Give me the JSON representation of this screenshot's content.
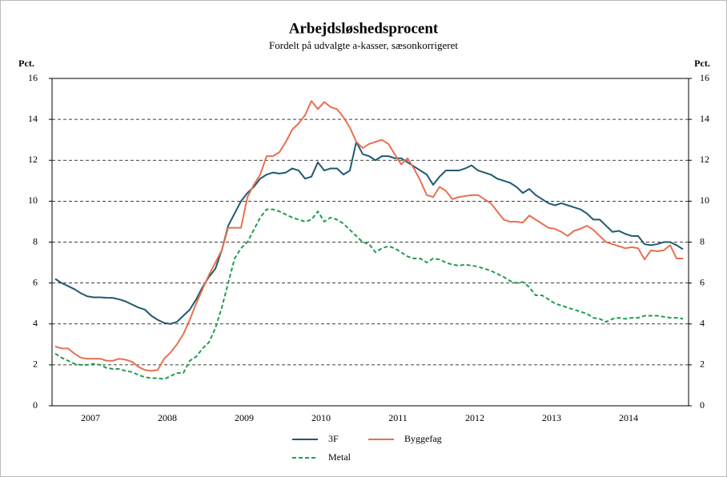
{
  "chart_data": {
    "type": "line",
    "title": "Arbejdsløshedsprocent",
    "subtitle": "Fordelt på udvalgte a-kasser, sæsonkorrigeret",
    "ylabel": "Pct.",
    "y2label": "Pct.",
    "categories": [
      null,
      null,
      null,
      null,
      null,
      null,
      "2007",
      null,
      null,
      null,
      null,
      null,
      null,
      null,
      null,
      null,
      null,
      null,
      "2008",
      null,
      null,
      null,
      null,
      null,
      null,
      null,
      null,
      null,
      null,
      null,
      "2009",
      null,
      null,
      null,
      null,
      null,
      null,
      null,
      null,
      null,
      null,
      null,
      "2010",
      null,
      null,
      null,
      null,
      null,
      null,
      null,
      null,
      null,
      null,
      null,
      "2011",
      null,
      null,
      null,
      null,
      null,
      null,
      null,
      null,
      null,
      null,
      null,
      "2012",
      null,
      null,
      null,
      null,
      null,
      null,
      null,
      null,
      null,
      null,
      null,
      "2013",
      null,
      null,
      null,
      null,
      null,
      null,
      null,
      null,
      null,
      null,
      null,
      "2014",
      null,
      null,
      null,
      null,
      null,
      null,
      null,
      null
    ],
    "series": [
      {
        "name": "3F",
        "color": "#1f5a70",
        "style": "solid",
        "values": [
          6.2,
          6.0,
          5.85,
          5.7,
          5.5,
          5.35,
          5.3,
          5.3,
          5.28,
          5.27,
          5.2,
          5.1,
          4.95,
          4.8,
          4.7,
          4.4,
          4.2,
          4.05,
          4.0,
          4.1,
          4.4,
          4.7,
          5.2,
          5.8,
          6.3,
          6.7,
          7.6,
          8.8,
          9.4,
          10.0,
          10.4,
          10.7,
          11.1,
          11.3,
          11.4,
          11.35,
          11.4,
          11.6,
          11.5,
          11.1,
          11.2,
          11.9,
          11.5,
          11.6,
          11.6,
          11.3,
          11.5,
          12.9,
          12.3,
          12.2,
          12.0,
          12.2,
          12.2,
          12.1,
          12.1,
          11.9,
          11.7,
          11.5,
          11.3,
          10.8,
          11.2,
          11.5,
          11.5,
          11.5,
          11.6,
          11.75,
          11.5,
          11.4,
          11.3,
          11.1,
          11.0,
          10.9,
          10.7,
          10.4,
          10.6,
          10.3,
          10.1,
          9.9,
          9.8,
          9.9,
          9.8,
          9.7,
          9.6,
          9.4,
          9.1,
          9.1,
          8.8,
          8.5,
          8.55,
          8.4,
          8.3,
          8.3,
          7.9,
          7.85,
          7.9,
          8.0,
          8.0,
          7.85,
          7.65
        ]
      },
      {
        "name": "Byggefag",
        "color": "#e8704f",
        "style": "solid",
        "values": [
          2.9,
          2.8,
          2.8,
          2.55,
          2.35,
          2.3,
          2.3,
          2.3,
          2.2,
          2.2,
          2.3,
          2.25,
          2.15,
          1.9,
          1.75,
          1.7,
          1.75,
          2.3,
          2.6,
          3.0,
          3.5,
          4.2,
          5.0,
          5.7,
          6.4,
          7.0,
          7.6,
          8.7,
          8.7,
          8.7,
          10.2,
          10.8,
          11.3,
          12.2,
          12.2,
          12.4,
          12.9,
          13.5,
          13.8,
          14.2,
          14.9,
          14.5,
          14.85,
          14.6,
          14.5,
          14.1,
          13.6,
          12.9,
          12.6,
          12.8,
          12.9,
          13.0,
          12.8,
          12.3,
          11.8,
          12.1,
          11.6,
          11.0,
          10.3,
          10.2,
          10.7,
          10.5,
          10.1,
          10.2,
          10.25,
          10.3,
          10.3,
          10.1,
          9.9,
          9.5,
          9.1,
          9.0,
          9.0,
          8.95,
          9.3,
          9.1,
          8.9,
          8.7,
          8.65,
          8.5,
          8.3,
          8.55,
          8.65,
          8.8,
          8.6,
          8.3,
          8.0,
          7.9,
          7.8,
          7.7,
          7.75,
          7.7,
          7.15,
          7.6,
          7.55,
          7.6,
          7.85,
          7.2,
          7.2
        ]
      },
      {
        "name": "Metal",
        "color": "#1f9e4e",
        "style": "dashed",
        "values": [
          2.55,
          2.35,
          2.2,
          2.05,
          2.0,
          2.0,
          2.05,
          2.0,
          1.85,
          1.8,
          1.8,
          1.7,
          1.65,
          1.5,
          1.4,
          1.35,
          1.35,
          1.3,
          1.45,
          1.6,
          1.6,
          2.2,
          2.4,
          2.8,
          3.1,
          3.8,
          4.8,
          6.0,
          7.2,
          7.7,
          8.0,
          8.6,
          9.2,
          9.6,
          9.6,
          9.5,
          9.35,
          9.2,
          9.1,
          9.0,
          9.1,
          9.5,
          9.0,
          9.2,
          9.1,
          8.9,
          8.6,
          8.3,
          8.0,
          7.9,
          7.5,
          7.7,
          7.8,
          7.7,
          7.5,
          7.3,
          7.2,
          7.2,
          7.0,
          7.2,
          7.15,
          7.0,
          6.9,
          6.85,
          6.9,
          6.85,
          6.8,
          6.7,
          6.6,
          6.45,
          6.3,
          6.1,
          6.0,
          6.05,
          5.8,
          5.4,
          5.4,
          5.2,
          5.0,
          4.9,
          4.8,
          4.7,
          4.6,
          4.5,
          4.3,
          4.25,
          4.1,
          4.25,
          4.3,
          4.25,
          4.3,
          4.3,
          4.4,
          4.4,
          4.4,
          4.35,
          4.3,
          4.3,
          4.25
        ]
      }
    ],
    "ylim": [
      0,
      16
    ],
    "yticks": [
      0,
      2,
      4,
      6,
      8,
      10,
      12,
      14,
      16
    ],
    "y2lim": [
      0,
      16
    ],
    "y2ticks": [
      0,
      2,
      4,
      6,
      8,
      10,
      12,
      14,
      16
    ],
    "grid": true
  }
}
